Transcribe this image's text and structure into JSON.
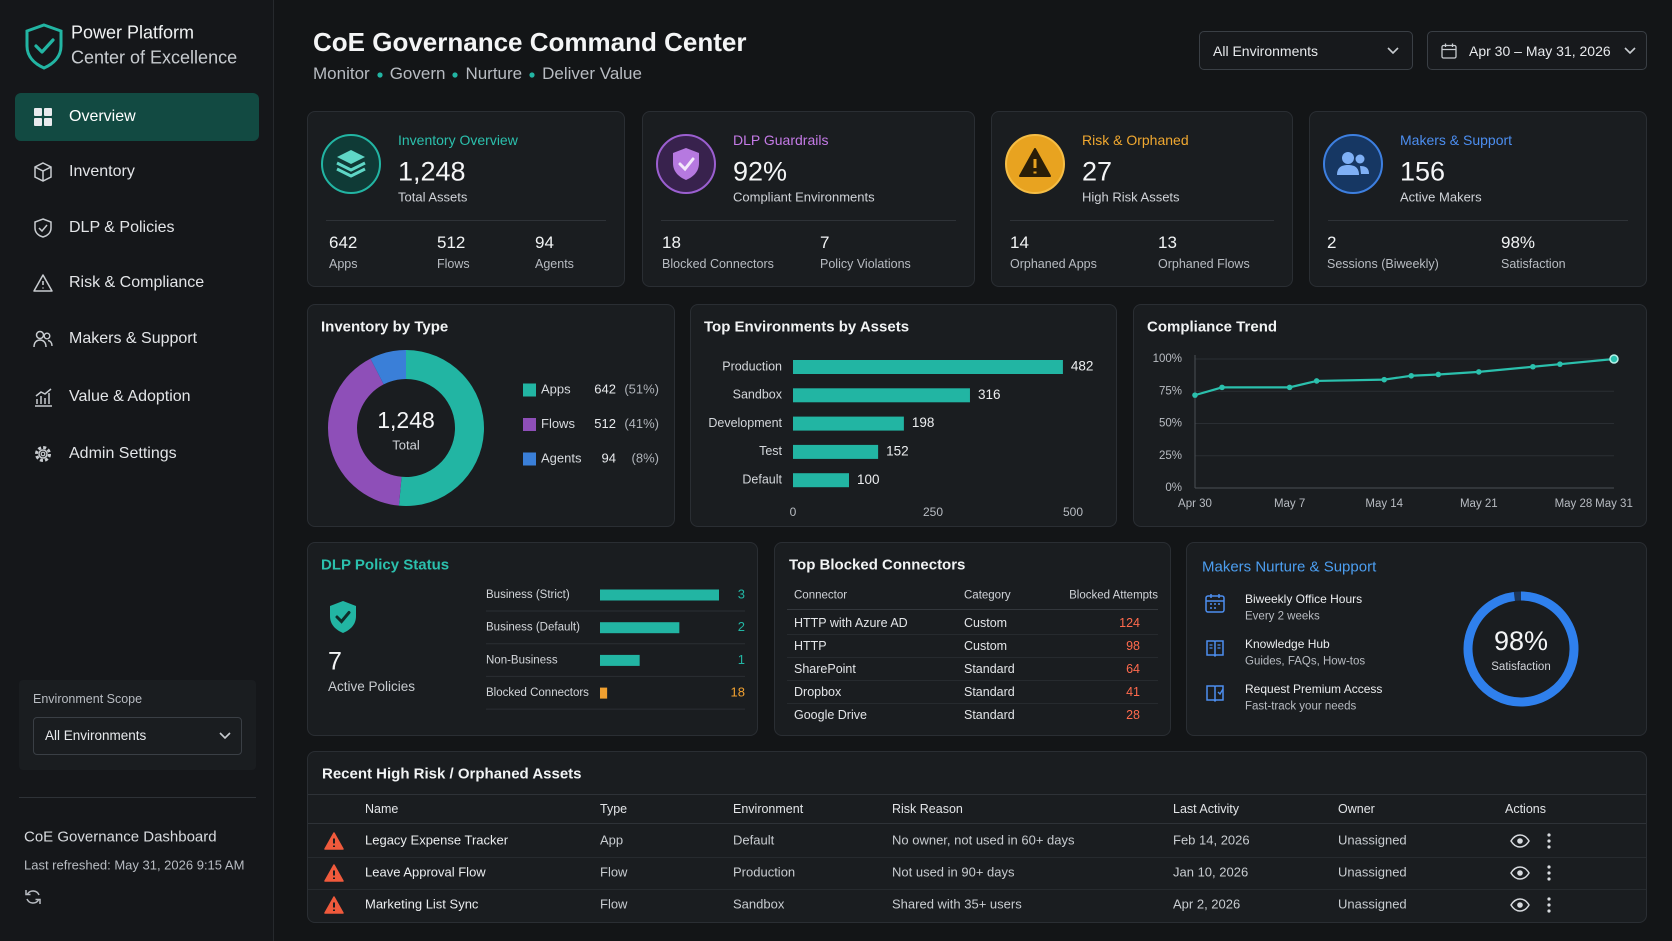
{
  "sidebar": {
    "brand_title": "Power Platform",
    "brand_subtitle": "Center of Excellence",
    "nav": [
      "Overview",
      "Inventory",
      "DLP & Policies",
      "Risk & Compliance",
      "Makers & Support",
      "Value & Adoption",
      "Admin Settings"
    ],
    "scope_label": "Environment Scope",
    "scope_value": "All Environments",
    "footer_title": "CoE Governance Dashboard",
    "footer_refreshed": "Last refreshed: May 31, 2026 9:15 AM"
  },
  "header": {
    "title": "CoE Governance Command Center",
    "subtitle": [
      "Monitor",
      "Govern",
      "Nurture",
      "Deliver Value"
    ],
    "environment_filter": "All Environments",
    "date_range": "Apr 30 – May 31, 2026"
  },
  "kpis": [
    {
      "title": "Inventory Overview",
      "value": "1,248",
      "caption": "Total Assets",
      "stats": [
        {
          "value": 642,
          "label": "Apps"
        },
        {
          "value": 512,
          "label": "Flows"
        },
        {
          "value": 94,
          "label": "Agents"
        }
      ]
    },
    {
      "title": "DLP Guardrails",
      "value": "92%",
      "caption": "Compliant Environments",
      "stats": [
        {
          "value": 18,
          "label": "Blocked Connectors"
        },
        {
          "value": 7,
          "label": "Policy Violations"
        }
      ]
    },
    {
      "title": "Risk & Orphaned",
      "value": 27,
      "caption": "High Risk Assets",
      "stats": [
        {
          "value": 14,
          "label": "Orphaned Apps"
        },
        {
          "value": 13,
          "label": "Orphaned Flows"
        }
      ]
    },
    {
      "title": "Makers & Support",
      "value": 156,
      "caption": "Active Makers",
      "stats": [
        {
          "value": 2,
          "label": "Sessions (Biweekly)"
        },
        {
          "value": "98%",
          "label": "Satisfaction"
        }
      ]
    }
  ],
  "chart_data": [
    {
      "type": "donut",
      "title": "Inventory by Type",
      "categories": [
        "Apps",
        "Flows",
        "Agents"
      ],
      "values": [
        642,
        512,
        94
      ],
      "percent_labels": [
        "(51%)",
        "(41%)",
        "(8%)"
      ],
      "colors": [
        "#22b5a3",
        "#8e4fb8",
        "#3a7fd8"
      ],
      "center_label": "1,248",
      "center_caption": "Total"
    },
    {
      "type": "bar",
      "orientation": "horizontal",
      "title": "Top Environments by Assets",
      "categories": [
        "Production",
        "Sandbox",
        "Development",
        "Test",
        "Default"
      ],
      "values": [
        482,
        316,
        198,
        152,
        100
      ],
      "color": "#22b5a3",
      "xlim": [
        0,
        500
      ],
      "xticks": [
        0,
        250,
        500
      ]
    },
    {
      "type": "line",
      "title": "Compliance Trend",
      "x": [
        0,
        2,
        7,
        9,
        14,
        16,
        18,
        21,
        25,
        27,
        31
      ],
      "values": [
        72,
        78,
        78,
        83,
        84,
        87,
        88,
        90,
        94,
        96,
        100
      ],
      "color": "#2bc0ad",
      "xlim": [
        0,
        31
      ],
      "xticks": [
        {
          "value": 0,
          "label": "Apr 30"
        },
        {
          "value": 7,
          "label": "May 7"
        },
        {
          "value": 14,
          "label": "May 14"
        },
        {
          "value": 21,
          "label": "May 21"
        },
        {
          "value": 28,
          "label": "May 28"
        },
        {
          "value": 31,
          "label": "May 31"
        }
      ],
      "ylim": [
        0,
        100
      ],
      "yticks": [
        {
          "value": 0,
          "label": "0%"
        },
        {
          "value": 25,
          "label": "25%"
        },
        {
          "value": 50,
          "label": "50%"
        },
        {
          "value": 75,
          "label": "75%"
        },
        {
          "value": 100,
          "label": "100%"
        }
      ],
      "grid": true
    },
    {
      "type": "bar",
      "orientation": "horizontal",
      "title": "DLP Policy Status",
      "summary_value": 7,
      "summary_label": "Active Policies",
      "categories": [
        "Business (Strict)",
        "Business (Default)",
        "Non-Business",
        "Blocked Connectors"
      ],
      "series": [
        {
          "color": "#22b5a3",
          "values": [
            3,
            2,
            1,
            null
          ]
        },
        {
          "color": "#f0a030",
          "values": [
            null,
            null,
            null,
            18
          ],
          "axis": "x2"
        }
      ],
      "xlim": [
        0,
        3
      ],
      "x2lim": [
        0,
        300
      ]
    },
    {
      "type": "gauge",
      "values": [
        98
      ],
      "value_labels": [
        "98%"
      ],
      "label": "Satisfaction",
      "ylim": [
        0,
        100
      ],
      "color": "#2f80ed"
    }
  ],
  "blocked_connectors": {
    "title": "Top Blocked Connectors",
    "columns": [
      "Connector",
      "Category",
      "Blocked Attempts"
    ],
    "rows": [
      [
        "HTTP with Azure AD",
        "Custom",
        124
      ],
      [
        "HTTP",
        "Custom",
        98
      ],
      [
        "SharePoint",
        "Standard",
        64
      ],
      [
        "Dropbox",
        "Standard",
        41
      ],
      [
        "Google Drive",
        "Standard",
        28
      ]
    ]
  },
  "makers_nurture": {
    "title": "Makers Nurture & Support",
    "items": [
      {
        "title": "Biweekly Office Hours",
        "subtitle": "Every 2 weeks"
      },
      {
        "title": "Knowledge Hub",
        "subtitle": "Guides, FAQs, How-tos"
      },
      {
        "title": "Request Premium Access",
        "subtitle": "Fast-track your needs"
      }
    ]
  },
  "recent_assets": {
    "title": "Recent High Risk / Orphaned Assets",
    "columns": [
      "Name",
      "Type",
      "Environment",
      "Risk Reason",
      "Last Activity",
      "Owner",
      "Actions"
    ],
    "rows": [
      [
        "Legacy Expense Tracker",
        "App",
        "Default",
        "No owner, not used in 60+ days",
        "Feb 14, 2026",
        "Unassigned"
      ],
      [
        "Leave Approval Flow",
        "Flow",
        "Production",
        "Not used in 90+ days",
        "Jan 10, 2026",
        "Unassigned"
      ],
      [
        "Marketing List Sync",
        "Flow",
        "Sandbox",
        "Shared with 35+ users",
        "Apr 2, 2026",
        "Unassigned"
      ]
    ]
  }
}
